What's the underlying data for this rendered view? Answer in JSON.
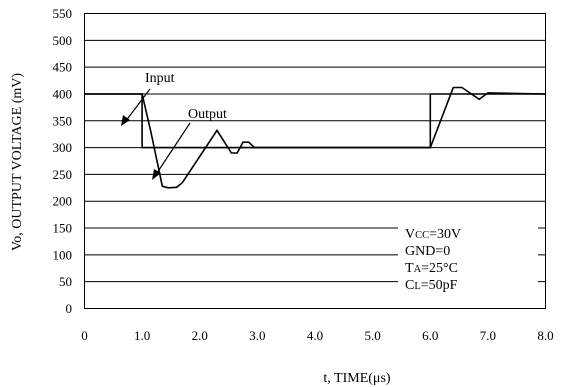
{
  "chart_data": {
    "type": "line",
    "xlabel": "t, TIME(μs)",
    "ylabel": "Vo, OUTPUT VOLTAGE (mV)",
    "xlim": [
      0,
      8
    ],
    "ylim": [
      0,
      550
    ],
    "x_ticks": [
      0,
      1,
      2,
      3,
      4,
      5,
      6,
      7,
      8
    ],
    "x_tick_labels": [
      "0",
      "1.0",
      "2.0",
      "3.0",
      "4.0",
      "5.0",
      "6.0",
      "7.0",
      "8.0"
    ],
    "y_ticks": [
      0,
      50,
      100,
      150,
      200,
      250,
      300,
      350,
      400,
      450,
      500,
      550
    ],
    "y_tick_labels": [
      "0",
      "50",
      "100",
      "150",
      "200",
      "250",
      "300",
      "350",
      "400",
      "450",
      "500",
      "550"
    ],
    "grid": "horizontal",
    "series": [
      {
        "name": "Input",
        "x": [
          0,
          1.0,
          1.0,
          6.0,
          6.0,
          8.0
        ],
        "y": [
          400,
          400,
          300,
          300,
          400,
          400
        ]
      },
      {
        "name": "Output",
        "x": [
          0,
          1.0,
          1.15,
          1.35,
          1.45,
          1.6,
          1.7,
          2.3,
          2.55,
          2.65,
          2.75,
          2.85,
          2.95,
          6.0,
          6.4,
          6.55,
          6.85,
          7.0,
          8.0
        ],
        "y": [
          400,
          400,
          330,
          228,
          225,
          226,
          235,
          332,
          290,
          290,
          310,
          310,
          300,
          300,
          412,
          412,
          390,
          402,
          400
        ]
      }
    ],
    "annotations": [
      "Input",
      "Output"
    ],
    "conditions": [
      "VCC=30V",
      "GND=0",
      "TA=25°C",
      "CL=50pF"
    ]
  }
}
